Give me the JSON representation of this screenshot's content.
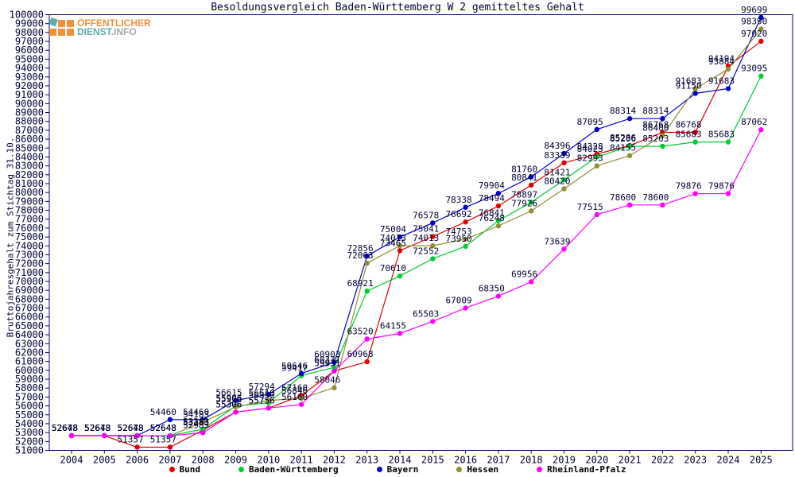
{
  "header": {
    "title": "Besoldungsvergleich Baden-Württemberg W 2 gemitteltes Gehalt"
  },
  "logo": {
    "line1": "ÖFFENTLICHER",
    "line2_a": "DIENST.",
    "line2_b": "INFO",
    "orange": "#f08020",
    "teal": "#4aa0a0",
    "gray": "#9a9a9a"
  },
  "axes": {
    "ylabel": "Bruttojahresgehalt zum Stichtag 31.10.",
    "y_min": 51000,
    "y_max": 100000,
    "y_step": 1000,
    "axis_color": "#000066",
    "text_color": "#000033"
  },
  "chart_data": {
    "type": "line",
    "title": "Besoldungsvergleich Baden-Württemberg W 2 gemitteltes Gehalt",
    "xlabel": "",
    "ylabel": "Bruttojahresgehalt zum Stichtag 31.10.",
    "ylim": [
      51000,
      100000
    ],
    "grid": false,
    "legend_position": "bottom",
    "point_labels": true,
    "x": [
      2004,
      2005,
      2006,
      2007,
      2008,
      2009,
      2010,
      2011,
      2012,
      2013,
      2014,
      2015,
      2016,
      2017,
      2018,
      2019,
      2020,
      2021,
      2022,
      2023,
      2024,
      2025
    ],
    "series": [
      {
        "name": "Bund",
        "color": "#dd0000",
        "values": [
          52648,
          52648,
          51357,
          51357,
          53283,
          55306,
          55756,
          57160,
          59931,
          60968,
          73465,
          75041,
          76692,
          78494,
          80841,
          83339,
          84328,
          85286,
          86768,
          86768,
          94194,
          97020
        ]
      },
      {
        "name": "Baden-Württemberg",
        "color": "#00cc33",
        "values": [
          52648,
          52648,
          52648,
          52648,
          53383,
          55996,
          56350,
          59417,
          60331,
          68921,
          70610,
          72552,
          73950,
          76841,
          78897,
          81421,
          84023,
          85206,
          85203,
          85683,
          85683,
          93095
        ]
      },
      {
        "name": "Bayern",
        "color": "#0000cc",
        "values": [
          52673,
          52673,
          52673,
          54460,
          54460,
          56615,
          57294,
          59646,
          60903,
          72856,
          75004,
          76578,
          78338,
          79904,
          81760,
          84396,
          87095,
          88314,
          88314,
          91150,
          91683,
          99699
        ]
      },
      {
        "name": "Hessen",
        "color": "#8f8f33",
        "values": [
          52648,
          52648,
          52648,
          52648,
          54183,
          55905,
          56610,
          56846,
          58046,
          72063,
          74013,
          74013,
          74753,
          76248,
          77926,
          80420,
          82993,
          84155,
          86406,
          91683,
          93884,
          98390
        ]
      },
      {
        "name": "Rheinland-Pfalz",
        "color": "#ff00ff",
        "values": [
          52648,
          52648,
          52648,
          52648,
          52983,
          55306,
          55756,
          56160,
          59931,
          63520,
          64155,
          65503,
          67009,
          68350,
          69956,
          73639,
          77515,
          78600,
          78600,
          79876,
          79876,
          87062
        ]
      }
    ]
  }
}
